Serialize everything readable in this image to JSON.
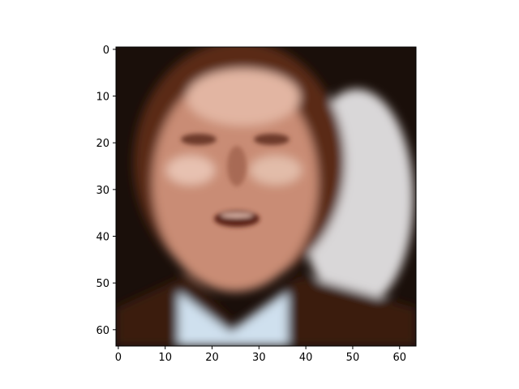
{
  "figure": {
    "image_description_name": "low-resolution-face-portrait",
    "pixel_grid": {
      "width": 64,
      "height": 64
    },
    "axes": {
      "x_ticks": [
        "0",
        "10",
        "20",
        "30",
        "40",
        "50",
        "60"
      ],
      "y_ticks": [
        "0",
        "10",
        "20",
        "30",
        "40",
        "50",
        "60"
      ],
      "x_tick_values": [
        0,
        10,
        20,
        30,
        40,
        50,
        60
      ],
      "y_tick_values": [
        0,
        10,
        20,
        30,
        40,
        50,
        60
      ],
      "xlim": [
        -0.5,
        63.5
      ],
      "ylim": [
        63.5,
        -0.5
      ]
    },
    "colors": {
      "background": "#1a0f0a",
      "skin": "#c98c74",
      "skin_highlight": "#e7c1b0",
      "hair": "#5a2a16",
      "backdrop_light": "#d9d7d8",
      "shirt": "#cfe0ee",
      "suit": "#3a1a0e"
    }
  }
}
